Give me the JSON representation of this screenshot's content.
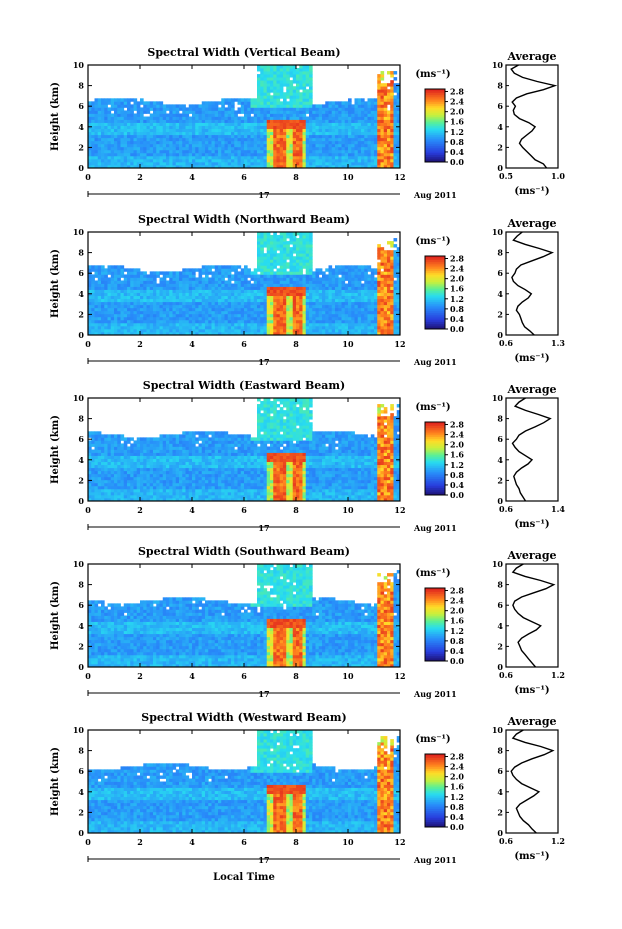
{
  "figure": {
    "xlabel": "Local Time",
    "ylabel": "Height (km)",
    "date_day": "17",
    "date_month_year": "Aug 2011",
    "profile_title": "Average",
    "profile_unit": "(ms⁻¹)",
    "colorbar_unit": "(ms⁻¹)"
  },
  "chart_data": [
    {
      "type": "heatmap",
      "title": "Spectral Width (Vertical Beam)",
      "xlim": [
        0,
        12
      ],
      "ylim": [
        0,
        10
      ],
      "xticks": [
        "0",
        "2",
        "4",
        "6",
        "8",
        "10",
        "12"
      ],
      "yticks": [
        "0",
        "2",
        "4",
        "6",
        "8",
        "10"
      ],
      "colorbar": {
        "ticks": [
          "0.0",
          "0.4",
          "0.8",
          "1.2",
          "1.6",
          "2.0",
          "2.4",
          "2.8"
        ],
        "range": [
          0,
          2.9
        ]
      },
      "profile": {
        "type": "line",
        "title": "Average",
        "xlim": [
          0.5,
          1.0
        ],
        "xticks": [
          "0.5",
          "1.0"
        ],
        "yticks": [
          "0",
          "2",
          "4",
          "6",
          "8",
          "10"
        ],
        "points": [
          [
            0.89,
            0
          ],
          [
            0.86,
            0.4
          ],
          [
            0.78,
            0.8
          ],
          [
            0.74,
            1.2
          ],
          [
            0.7,
            1.6
          ],
          [
            0.66,
            2.0
          ],
          [
            0.63,
            2.4
          ],
          [
            0.65,
            2.8
          ],
          [
            0.7,
            3.2
          ],
          [
            0.75,
            3.6
          ],
          [
            0.78,
            4.0
          ],
          [
            0.72,
            4.4
          ],
          [
            0.63,
            4.8
          ],
          [
            0.58,
            5.2
          ],
          [
            0.57,
            5.6
          ],
          [
            0.59,
            6.0
          ],
          [
            0.56,
            6.4
          ],
          [
            0.6,
            6.8
          ],
          [
            0.7,
            7.2
          ],
          [
            0.86,
            7.6
          ],
          [
            0.97,
            8.0
          ],
          [
            0.8,
            8.4
          ],
          [
            0.66,
            8.8
          ],
          [
            0.58,
            9.2
          ],
          [
            0.55,
            9.6
          ],
          [
            0.62,
            10.0
          ]
        ]
      }
    },
    {
      "type": "heatmap",
      "title": "Spectral Width (Northward Beam)",
      "xlim": [
        0,
        12
      ],
      "ylim": [
        0,
        10
      ],
      "xticks": [
        "0",
        "2",
        "4",
        "6",
        "8",
        "10",
        "12"
      ],
      "yticks": [
        "0",
        "2",
        "4",
        "6",
        "8",
        "10"
      ],
      "colorbar": {
        "ticks": [
          "0.0",
          "0.4",
          "0.8",
          "1.2",
          "1.6",
          "2.0",
          "2.4",
          "2.8"
        ],
        "range": [
          0,
          2.9
        ]
      },
      "profile": {
        "type": "line",
        "title": "Average",
        "xlim": [
          0.6,
          1.3
        ],
        "xticks": [
          "0.6",
          "1.3"
        ],
        "yticks": [
          "0",
          "2",
          "4",
          "6",
          "8",
          "10"
        ],
        "points": [
          [
            0.98,
            0
          ],
          [
            0.92,
            0.4
          ],
          [
            0.85,
            0.8
          ],
          [
            0.82,
            1.2
          ],
          [
            0.8,
            1.6
          ],
          [
            0.78,
            2.0
          ],
          [
            0.74,
            2.4
          ],
          [
            0.76,
            2.8
          ],
          [
            0.82,
            3.2
          ],
          [
            0.9,
            3.6
          ],
          [
            0.94,
            4.0
          ],
          [
            0.86,
            4.4
          ],
          [
            0.76,
            4.8
          ],
          [
            0.7,
            5.2
          ],
          [
            0.68,
            5.6
          ],
          [
            0.72,
            6.0
          ],
          [
            0.74,
            6.4
          ],
          [
            0.8,
            6.8
          ],
          [
            0.95,
            7.2
          ],
          [
            1.1,
            7.6
          ],
          [
            1.22,
            8.0
          ],
          [
            1.05,
            8.4
          ],
          [
            0.86,
            8.8
          ],
          [
            0.7,
            9.2
          ],
          [
            0.75,
            9.6
          ],
          [
            0.82,
            10.0
          ]
        ]
      }
    },
    {
      "type": "heatmap",
      "title": "Spectral Width (Eastward Beam)",
      "xlim": [
        0,
        12
      ],
      "ylim": [
        0,
        10
      ],
      "xticks": [
        "0",
        "2",
        "4",
        "6",
        "8",
        "10",
        "12"
      ],
      "yticks": [
        "0",
        "2",
        "4",
        "6",
        "8",
        "10"
      ],
      "colorbar": {
        "ticks": [
          "0.0",
          "0.4",
          "0.8",
          "1.2",
          "1.6",
          "2.0",
          "2.4",
          "2.8"
        ],
        "range": [
          0,
          2.9
        ]
      },
      "profile": {
        "type": "line",
        "title": "Average",
        "xlim": [
          0.6,
          1.4
        ],
        "xticks": [
          "0.6",
          "1.4"
        ],
        "yticks": [
          "0",
          "2",
          "4",
          "6",
          "8",
          "10"
        ],
        "points": [
          [
            0.9,
            0
          ],
          [
            0.86,
            0.4
          ],
          [
            0.82,
            0.8
          ],
          [
            0.8,
            1.2
          ],
          [
            0.76,
            1.6
          ],
          [
            0.74,
            2.0
          ],
          [
            0.72,
            2.4
          ],
          [
            0.76,
            2.8
          ],
          [
            0.84,
            3.2
          ],
          [
            0.94,
            3.6
          ],
          [
            1.0,
            4.0
          ],
          [
            0.9,
            4.4
          ],
          [
            0.8,
            4.8
          ],
          [
            0.74,
            5.2
          ],
          [
            0.7,
            5.6
          ],
          [
            0.76,
            6.0
          ],
          [
            0.8,
            6.4
          ],
          [
            0.9,
            6.8
          ],
          [
            1.05,
            7.2
          ],
          [
            1.18,
            7.6
          ],
          [
            1.28,
            8.0
          ],
          [
            1.1,
            8.4
          ],
          [
            0.9,
            8.8
          ],
          [
            0.74,
            9.2
          ],
          [
            0.8,
            9.6
          ],
          [
            0.9,
            10.0
          ]
        ]
      }
    },
    {
      "type": "heatmap",
      "title": "Spectral Width (Southward Beam)",
      "xlim": [
        0,
        12
      ],
      "ylim": [
        0,
        10
      ],
      "xticks": [
        "0",
        "2",
        "4",
        "6",
        "8",
        "10",
        "12"
      ],
      "yticks": [
        "0",
        "2",
        "4",
        "6",
        "8",
        "10"
      ],
      "colorbar": {
        "ticks": [
          "0.0",
          "0.4",
          "0.8",
          "1.2",
          "1.6",
          "2.0",
          "2.4",
          "2.8"
        ],
        "range": [
          0,
          2.9
        ]
      },
      "profile": {
        "type": "line",
        "title": "Average",
        "xlim": [
          0.6,
          1.2
        ],
        "xticks": [
          "0.6",
          "1.2"
        ],
        "yticks": [
          "0",
          "2",
          "4",
          "6",
          "8",
          "10"
        ],
        "points": [
          [
            0.94,
            0
          ],
          [
            0.9,
            0.4
          ],
          [
            0.86,
            0.8
          ],
          [
            0.82,
            1.2
          ],
          [
            0.78,
            1.6
          ],
          [
            0.76,
            2.0
          ],
          [
            0.74,
            2.4
          ],
          [
            0.78,
            2.8
          ],
          [
            0.86,
            3.2
          ],
          [
            0.95,
            3.6
          ],
          [
            1.0,
            4.0
          ],
          [
            0.9,
            4.4
          ],
          [
            0.8,
            4.8
          ],
          [
            0.74,
            5.2
          ],
          [
            0.7,
            5.6
          ],
          [
            0.68,
            6.0
          ],
          [
            0.7,
            6.4
          ],
          [
            0.78,
            6.8
          ],
          [
            0.92,
            7.2
          ],
          [
            1.06,
            7.6
          ],
          [
            1.15,
            8.0
          ],
          [
            1.0,
            8.4
          ],
          [
            0.82,
            8.8
          ],
          [
            0.68,
            9.2
          ],
          [
            0.72,
            9.6
          ],
          [
            0.8,
            10.0
          ]
        ]
      }
    },
    {
      "type": "heatmap",
      "title": "Spectral Width (Westward Beam)",
      "xlim": [
        0,
        12
      ],
      "ylim": [
        0,
        10
      ],
      "xticks": [
        "0",
        "2",
        "4",
        "6",
        "8",
        "10",
        "12"
      ],
      "yticks": [
        "0",
        "2",
        "4",
        "6",
        "8",
        "10"
      ],
      "colorbar": {
        "ticks": [
          "0.0",
          "0.4",
          "0.8",
          "1.2",
          "1.6",
          "2.0",
          "2.4",
          "2.8"
        ],
        "range": [
          0,
          2.9
        ]
      },
      "profile": {
        "type": "line",
        "title": "Average",
        "xlim": [
          0.6,
          1.2
        ],
        "xticks": [
          "0.6",
          "1.2"
        ],
        "yticks": [
          "0",
          "2",
          "4",
          "6",
          "8",
          "10"
        ],
        "points": [
          [
            0.95,
            0
          ],
          [
            0.9,
            0.4
          ],
          [
            0.86,
            0.8
          ],
          [
            0.8,
            1.2
          ],
          [
            0.76,
            1.6
          ],
          [
            0.74,
            2.0
          ],
          [
            0.72,
            2.4
          ],
          [
            0.76,
            2.8
          ],
          [
            0.84,
            3.2
          ],
          [
            0.92,
            3.6
          ],
          [
            0.98,
            4.0
          ],
          [
            0.88,
            4.4
          ],
          [
            0.78,
            4.8
          ],
          [
            0.72,
            5.2
          ],
          [
            0.68,
            5.6
          ],
          [
            0.66,
            6.0
          ],
          [
            0.7,
            6.4
          ],
          [
            0.78,
            6.8
          ],
          [
            0.9,
            7.2
          ],
          [
            1.04,
            7.6
          ],
          [
            1.14,
            8.0
          ],
          [
            1.0,
            8.4
          ],
          [
            0.82,
            8.8
          ],
          [
            0.68,
            9.2
          ],
          [
            0.72,
            9.6
          ],
          [
            0.8,
            10.0
          ]
        ]
      }
    }
  ]
}
